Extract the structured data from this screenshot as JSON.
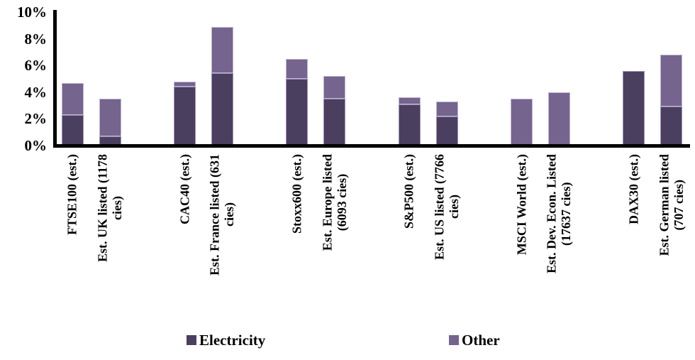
{
  "page": {
    "background": "#ffffff"
  },
  "chart_data": {
    "type": "bar",
    "stacked": true,
    "title": "",
    "xlabel": "",
    "ylabel": "",
    "ylim": [
      0,
      10
    ],
    "grid": false,
    "legend_position": "bottom",
    "axis_color": "#000000",
    "yticks": [
      {
        "value": 0,
        "label": "0%"
      },
      {
        "value": 2,
        "label": "2%"
      },
      {
        "value": 4,
        "label": "4%"
      },
      {
        "value": 6,
        "label": "6%"
      },
      {
        "value": 8,
        "label": "8%"
      },
      {
        "value": 10,
        "label": "10%"
      }
    ],
    "categories": [
      "FTSE100 (est.)",
      "Est. UK listed (1178\ncies)",
      "CAC40 (est.)",
      "Est. France listed (631\ncies)",
      "Stoxx600 (est.)",
      "Est. Europe listed\n(6093 cies)",
      "S&P500 (est.)",
      "Est. US listed (7766\ncies)",
      "MSCI World (est.)",
      "Est. Dev. Econ. Listed\n(17637 cies)",
      "DAX30 (est.)",
      "Est. German listed\n(707 cies)"
    ],
    "slots": [
      0,
      1,
      3,
      4,
      6,
      7,
      9,
      10,
      12,
      13,
      15,
      16
    ],
    "total_slots": 17,
    "series": [
      {
        "name": "Electricity",
        "color": "#4B3F60",
        "border_color": "#9C92B8",
        "values": [
          2.3,
          0.7,
          4.4,
          5.4,
          5.0,
          3.5,
          3.1,
          2.2,
          0,
          0,
          5.6,
          2.9
        ]
      },
      {
        "name": "Other",
        "color": "#75648D",
        "border_color": "#BFB4D1",
        "values": [
          2.4,
          2.8,
          0.4,
          3.5,
          1.5,
          1.7,
          0.5,
          1.1,
          3.5,
          4.0,
          0,
          3.9
        ]
      }
    ]
  }
}
